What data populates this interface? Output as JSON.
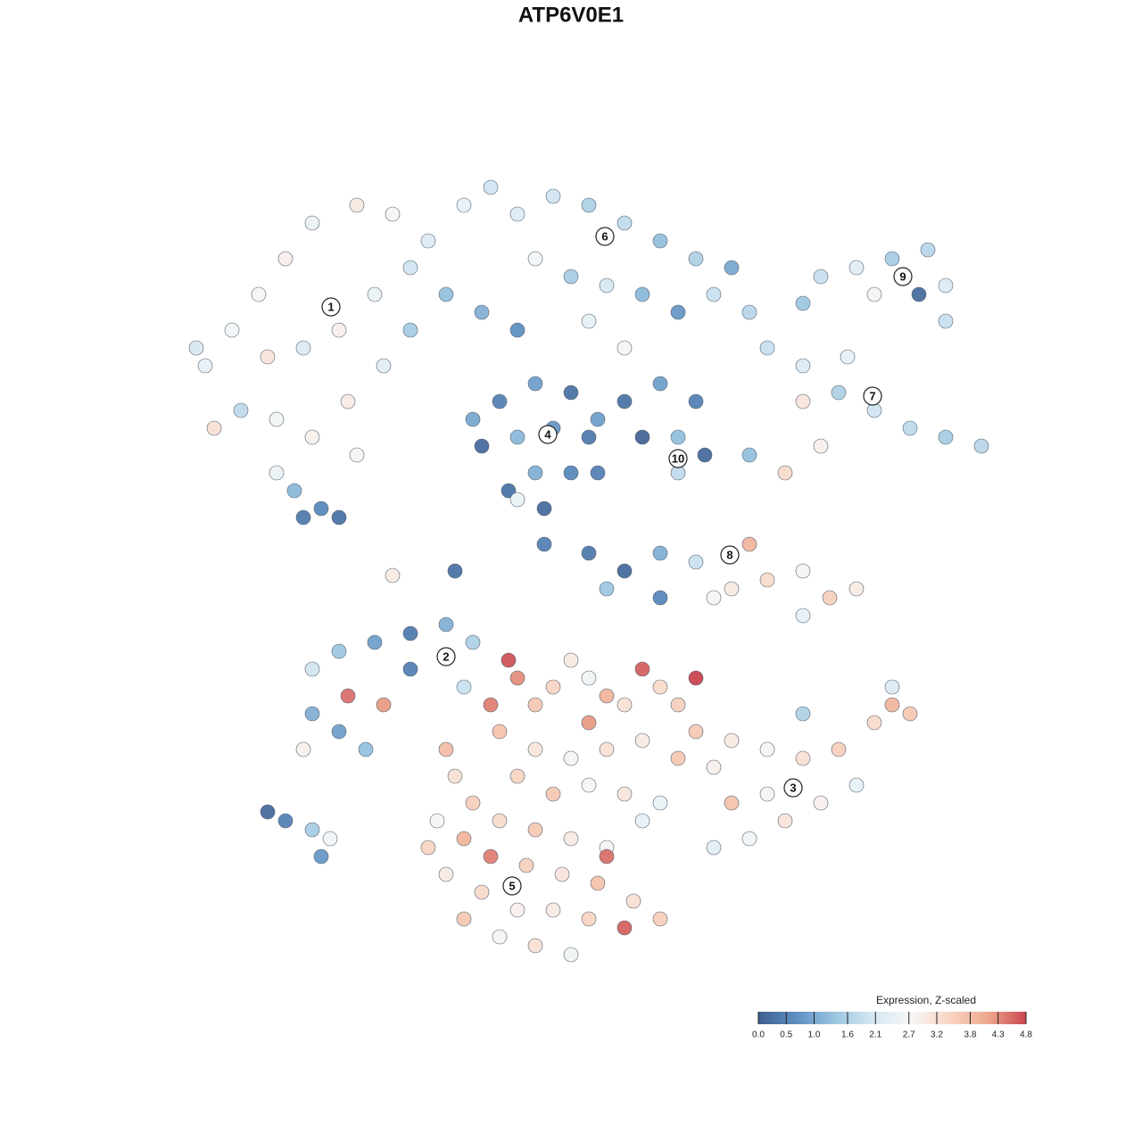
{
  "chart_data": {
    "type": "scatter",
    "title": "ATP6V0E1",
    "xlim": [
      0,
      930
    ],
    "ylim": [
      0,
      905
    ],
    "clim": [
      0,
      4.8
    ],
    "colorscale": [
      "#3f5f8f",
      "#5d8fc2",
      "#9cc6e0",
      "#d6e8f3",
      "#f7f7f7",
      "#f8d4c2",
      "#eea98e",
      "#c9454f"
    ],
    "legend_title": "Expression, Z-scaled",
    "legend_ticks": [
      {
        "value": 0,
        "label": "0.0"
      },
      0.5,
      {
        "value": 1,
        "label": "1.0"
      },
      1.6,
      2.1,
      2.7,
      3.2,
      3.8,
      4.3,
      4.8
    ],
    "clusters": [
      {
        "label": "1",
        "x": 171,
        "y": 746
      },
      {
        "label": "2",
        "x": 300,
        "y": 354
      },
      {
        "label": "3",
        "x": 689,
        "y": 207
      },
      {
        "label": "4",
        "x": 414,
        "y": 603
      },
      {
        "label": "5",
        "x": 374,
        "y": 97
      },
      {
        "label": "6",
        "x": 478,
        "y": 825
      },
      {
        "label": "7",
        "x": 778,
        "y": 646
      },
      {
        "label": "8",
        "x": 618,
        "y": 468
      },
      {
        "label": "9",
        "x": 812,
        "y": 780
      },
      {
        "label": "10",
        "x": 560,
        "y": 576
      }
    ],
    "points": {
      "x": [
        30,
        60,
        90,
        120,
        150,
        200,
        240,
        100,
        140,
        180,
        220,
        260,
        70,
        110,
        150,
        190,
        230,
        40,
        20,
        130,
        160,
        180,
        140,
        110,
        200,
        260,
        300,
        280,
        320,
        350,
        380,
        420,
        460,
        500,
        540,
        580,
        620,
        400,
        440,
        480,
        520,
        560,
        600,
        340,
        380,
        640,
        460,
        500,
        360,
        400,
        440,
        380,
        420,
        460,
        340,
        400,
        440,
        370,
        470,
        330,
        410,
        470,
        500,
        540,
        580,
        560,
        560,
        590,
        520,
        660,
        700,
        740,
        780,
        820,
        860,
        900,
        700,
        750,
        680,
        640,
        720,
        720,
        760,
        800,
        840,
        860,
        780,
        700,
        860,
        830,
        460,
        500,
        540,
        580,
        620,
        660,
        700,
        730,
        760,
        700,
        640,
        600,
        540,
        480,
        150,
        180,
        220,
        260,
        300,
        330,
        150,
        180,
        210,
        190,
        230,
        140,
        260,
        320,
        100,
        120,
        150,
        170,
        160,
        580,
        620,
        660,
        700,
        740,
        780,
        800,
        820,
        760,
        720,
        680,
        640,
        600,
        620,
        660,
        700,
        800,
        370,
        380,
        400,
        420,
        440,
        460,
        480,
        500,
        520,
        540,
        560,
        580,
        460,
        350,
        360,
        400,
        440,
        480,
        520,
        560,
        600,
        380,
        420,
        460,
        500,
        540,
        300,
        310,
        330,
        290,
        320,
        360,
        400,
        440,
        480,
        520,
        350,
        390,
        430,
        470,
        510,
        500,
        460,
        420,
        380,
        340,
        320,
        360,
        400,
        440,
        300,
        480,
        540,
        280,
        240,
        310,
        410,
        380
      ],
      "y": [
        680,
        720,
        760,
        800,
        840,
        860,
        850,
        690,
        700,
        720,
        760,
        790,
        630,
        620,
        600,
        640,
        680,
        610,
        700,
        540,
        520,
        510,
        510,
        560,
        580,
        720,
        760,
        820,
        860,
        880,
        850,
        870,
        860,
        840,
        820,
        800,
        790,
        800,
        780,
        770,
        760,
        740,
        760,
        740,
        720,
        740,
        730,
        700,
        640,
        660,
        650,
        600,
        610,
        600,
        590,
        560,
        560,
        540,
        620,
        620,
        520,
        560,
        640,
        660,
        640,
        600,
        560,
        580,
        600,
        700,
        680,
        650,
        630,
        610,
        600,
        590,
        640,
        690,
        560,
        580,
        590,
        780,
        790,
        800,
        810,
        770,
        760,
        750,
        730,
        760,
        470,
        450,
        470,
        460,
        430,
        440,
        450,
        420,
        430,
        400,
        480,
        420,
        420,
        430,
        340,
        360,
        370,
        380,
        390,
        370,
        290,
        270,
        250,
        310,
        300,
        250,
        340,
        320,
        180,
        170,
        160,
        150,
        130,
        270,
        260,
        250,
        240,
        250,
        280,
        300,
        290,
        210,
        190,
        170,
        150,
        140,
        190,
        200,
        290,
        320,
        350,
        330,
        300,
        320,
        350,
        330,
        310,
        300,
        340,
        320,
        300,
        330,
        280,
        300,
        270,
        250,
        240,
        250,
        260,
        240,
        230,
        220,
        200,
        210,
        200,
        190,
        250,
        220,
        190,
        170,
        150,
        170,
        160,
        150,
        140,
        170,
        130,
        120,
        110,
        100,
        80,
        50,
        60,
        70,
        70,
        90,
        60,
        40,
        30,
        20,
        110,
        130,
        60,
        140,
        445,
        450,
        480,
        530
      ],
      "values": [
        2.4,
        2.6,
        2.8,
        2.9,
        2.5,
        3.0,
        2.7,
        3.1,
        2.2,
        2.9,
        2.5,
        2.0,
        1.8,
        2.6,
        2.9,
        3.0,
        2.3,
        3.2,
        2.1,
        1.2,
        0.6,
        0.3,
        0.4,
        2.5,
        2.8,
        1.5,
        1.3,
        2.2,
        2.4,
        2.0,
        2.2,
        2.0,
        1.6,
        1.8,
        1.3,
        1.6,
        1.0,
        2.6,
        1.5,
        2.1,
        1.2,
        0.8,
        1.9,
        1.1,
        0.7,
        1.7,
        2.4,
        2.7,
        0.5,
        0.9,
        0.3,
        1.2,
        0.8,
        0.4,
        0.2,
        1.1,
        0.6,
        0.3,
        0.9,
        1.0,
        0.2,
        0.5,
        0.3,
        0.9,
        0.5,
        1.3,
        1.8,
        0.2,
        0.1,
        1.9,
        2.2,
        1.6,
        2.0,
        1.8,
        1.5,
        1.7,
        3.1,
        2.4,
        3.3,
        1.3,
        2.9,
        1.9,
        2.3,
        1.5,
        1.7,
        2.2,
        2.8,
        1.4,
        1.9,
        0.2,
        0.4,
        0.2,
        1.1,
        1.9,
        3.0,
        3.3,
        2.8,
        3.5,
        3.0,
        2.4,
        3.9,
        2.7,
        0.6,
        1.4,
        2.0,
        1.4,
        0.9,
        0.4,
        1.1,
        1.6,
        1.1,
        0.9,
        1.3,
        4.5,
        4.2,
        2.9,
        0.5,
        1.9,
        0.2,
        0.5,
        1.5,
        2.6,
        0.8,
        3.6,
        3.0,
        2.8,
        3.2,
        3.5,
        3.3,
        3.9,
        3.6,
        2.4,
        2.9,
        3.1,
        2.6,
        2.3,
        3.7,
        2.7,
        1.6,
        2.2,
        4.7,
        4.3,
        3.6,
        3.4,
        3.0,
        2.6,
        3.9,
        3.2,
        4.6,
        3.3,
        3.5,
        4.8,
        4.2,
        4.4,
        3.7,
        3.1,
        2.8,
        3.2,
        3.0,
        3.6,
        2.9,
        3.4,
        3.6,
        2.7,
        3.1,
        2.5,
        3.8,
        3.2,
        3.5,
        2.7,
        3.9,
        3.3,
        3.6,
        3.0,
        2.8,
        2.4,
        4.4,
        3.5,
        3.1,
        3.7,
        3.2,
        4.6,
        3.4,
        3.0,
        2.9,
        3.3,
        3.6,
        2.8,
        3.2,
        2.6,
        3.0,
        4.5,
        3.5,
        3.4,
        3.0,
        0.3,
        0.5,
        2.5
      ]
    }
  }
}
